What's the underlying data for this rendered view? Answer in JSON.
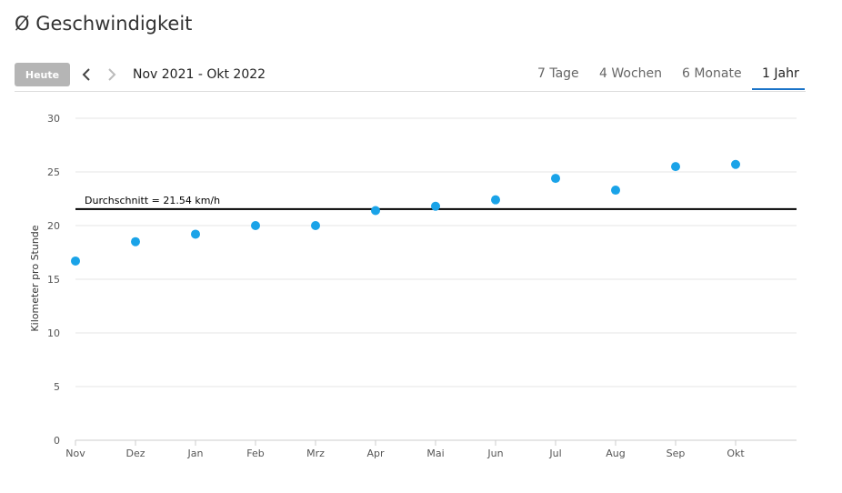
{
  "page": {
    "title": "Ø Geschwindigkeit"
  },
  "toolbar": {
    "today_label": "Heute",
    "date_range": "Nov 2021 - Okt 2022",
    "tabs": [
      {
        "label": "7 Tage",
        "active": false
      },
      {
        "label": "4 Wochen",
        "active": false
      },
      {
        "label": "6 Monate",
        "active": false
      },
      {
        "label": "1 Jahr",
        "active": true
      }
    ]
  },
  "colors": {
    "accent": "#1a73c8",
    "point": "#1aa3e8",
    "average_line": "#000000",
    "grid": "#e6e6e6"
  },
  "chart_data": {
    "type": "scatter",
    "title": "",
    "xlabel": "",
    "ylabel": "Kilometer pro Stunde",
    "categories": [
      "Nov",
      "Dez",
      "Jan",
      "Feb",
      "Mrz",
      "Apr",
      "Mai",
      "Jun",
      "Jul",
      "Aug",
      "Sep",
      "Okt"
    ],
    "series": [
      {
        "values": [
          16.7,
          18.5,
          19.2,
          20.0,
          20.0,
          21.4,
          21.8,
          22.4,
          24.4,
          23.3,
          25.5,
          25.7
        ]
      }
    ],
    "ylim": [
      0,
      30
    ],
    "yticks": [
      0,
      5,
      10,
      15,
      20,
      25,
      30
    ],
    "grid": true,
    "legend": "none",
    "average": {
      "value": 21.54,
      "label": "Durchschnitt = 21.54 km/h"
    }
  }
}
